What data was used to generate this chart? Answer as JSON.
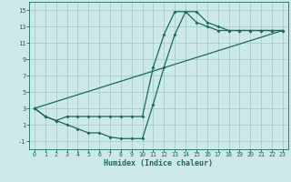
{
  "xlabel": "Humidex (Indice chaleur)",
  "bg_color": "#cce8e8",
  "grid_color": "#aacccc",
  "line_color": "#1a6b5a",
  "xlim": [
    -0.5,
    23.5
  ],
  "ylim": [
    -2.0,
    16.0
  ],
  "xticks": [
    0,
    1,
    2,
    3,
    4,
    5,
    6,
    7,
    8,
    9,
    10,
    11,
    12,
    13,
    14,
    15,
    16,
    17,
    18,
    19,
    20,
    21,
    22,
    23
  ],
  "yticks": [
    -1,
    1,
    3,
    5,
    7,
    9,
    11,
    13,
    15
  ],
  "curve1_x": [
    0,
    1,
    2,
    3,
    4,
    5,
    6,
    7,
    8,
    9,
    10,
    11,
    12,
    13,
    14,
    15,
    16,
    17,
    18,
    19,
    20,
    21,
    22,
    23
  ],
  "curve1_y": [
    3.0,
    2.0,
    1.5,
    2.0,
    2.0,
    2.0,
    2.0,
    2.0,
    2.0,
    2.0,
    2.0,
    8.0,
    12.0,
    14.8,
    14.8,
    13.5,
    13.0,
    12.5,
    12.5,
    12.5,
    12.5,
    12.5,
    12.5,
    12.5
  ],
  "curve2_x": [
    0,
    1,
    2,
    3,
    4,
    5,
    6,
    7,
    8,
    9,
    10,
    11,
    12,
    13,
    14,
    15,
    16,
    17,
    18,
    19,
    20,
    21,
    22,
    23
  ],
  "curve2_y": [
    3.0,
    2.0,
    1.5,
    1.0,
    0.5,
    0.0,
    0.0,
    -0.5,
    -0.7,
    -0.7,
    -0.7,
    3.5,
    8.0,
    12.0,
    14.8,
    14.8,
    13.5,
    13.0,
    12.5,
    12.5,
    12.5,
    12.5,
    12.5,
    12.5
  ],
  "line3_x": [
    0,
    23
  ],
  "line3_y": [
    3.0,
    12.5
  ]
}
